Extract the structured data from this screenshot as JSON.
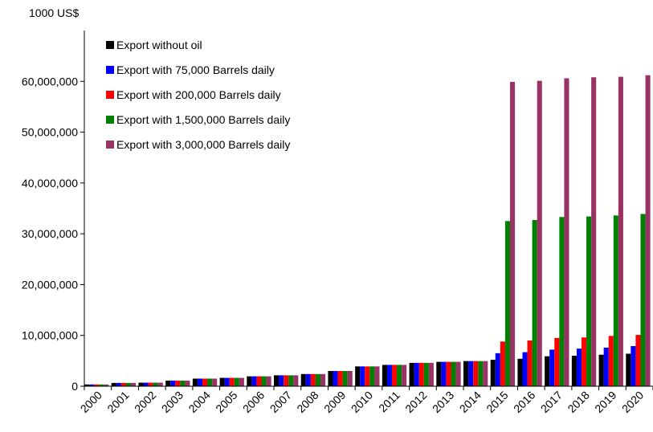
{
  "chart_data": {
    "type": "bar",
    "unit_label": "1000 US$",
    "title": "",
    "xlabel": "",
    "ylabel": "",
    "ylim": [
      0,
      70000000
    ],
    "y_ticks": [
      "0",
      "10,000,000",
      "20,000,000",
      "30,000,000",
      "40,000,000",
      "50,000,000",
      "60,000,000"
    ],
    "y_tick_values": [
      0,
      10000000,
      20000000,
      30000000,
      40000000,
      50000000,
      60000000
    ],
    "grid": false,
    "legend_position": "top-left",
    "categories": [
      "2000",
      "2001",
      "2002",
      "2003",
      "2004",
      "2005",
      "2006",
      "2007",
      "2008",
      "2009",
      "2010",
      "2011",
      "2012",
      "2013",
      "2014",
      "2015",
      "2016",
      "2017",
      "2018",
      "2019",
      "2020"
    ],
    "series": [
      {
        "name": "Export without oil",
        "color": "#000000",
        "values": [
          350000,
          650000,
          700000,
          1100000,
          1500000,
          1650000,
          1950000,
          2150000,
          2400000,
          3000000,
          3900000,
          4200000,
          4600000,
          4800000,
          4950000,
          5200000,
          5400000,
          5900000,
          6000000,
          6200000,
          6400000
        ]
      },
      {
        "name": "Export with 75,000 Barrels daily",
        "color": "#0000ff",
        "values": [
          350000,
          650000,
          700000,
          1100000,
          1500000,
          1650000,
          1950000,
          2150000,
          2400000,
          3000000,
          3900000,
          4200000,
          4600000,
          4800000,
          4950000,
          6500000,
          6700000,
          7200000,
          7400000,
          7600000,
          7900000
        ]
      },
      {
        "name": "Export with 200,000 Barrels daily",
        "color": "#ff0000",
        "values": [
          350000,
          650000,
          700000,
          1100000,
          1500000,
          1650000,
          1950000,
          2150000,
          2400000,
          3000000,
          3900000,
          4200000,
          4600000,
          4800000,
          4950000,
          8800000,
          9000000,
          9500000,
          9600000,
          9900000,
          10100000
        ]
      },
      {
        "name": "Export with 1,500,000 Barrels daily",
        "color": "#008000",
        "values": [
          350000,
          650000,
          700000,
          1100000,
          1500000,
          1650000,
          1950000,
          2150000,
          2400000,
          3000000,
          3900000,
          4200000,
          4600000,
          4800000,
          4950000,
          32500000,
          32700000,
          33300000,
          33400000,
          33600000,
          33900000
        ]
      },
      {
        "name": "Export with 3,000,000 Barrels daily",
        "color": "#993366",
        "values": [
          350000,
          650000,
          700000,
          1100000,
          1500000,
          1650000,
          1950000,
          2150000,
          2400000,
          3000000,
          3900000,
          4200000,
          4600000,
          4800000,
          4950000,
          59900000,
          60100000,
          60600000,
          60800000,
          60900000,
          61200000
        ]
      }
    ]
  }
}
